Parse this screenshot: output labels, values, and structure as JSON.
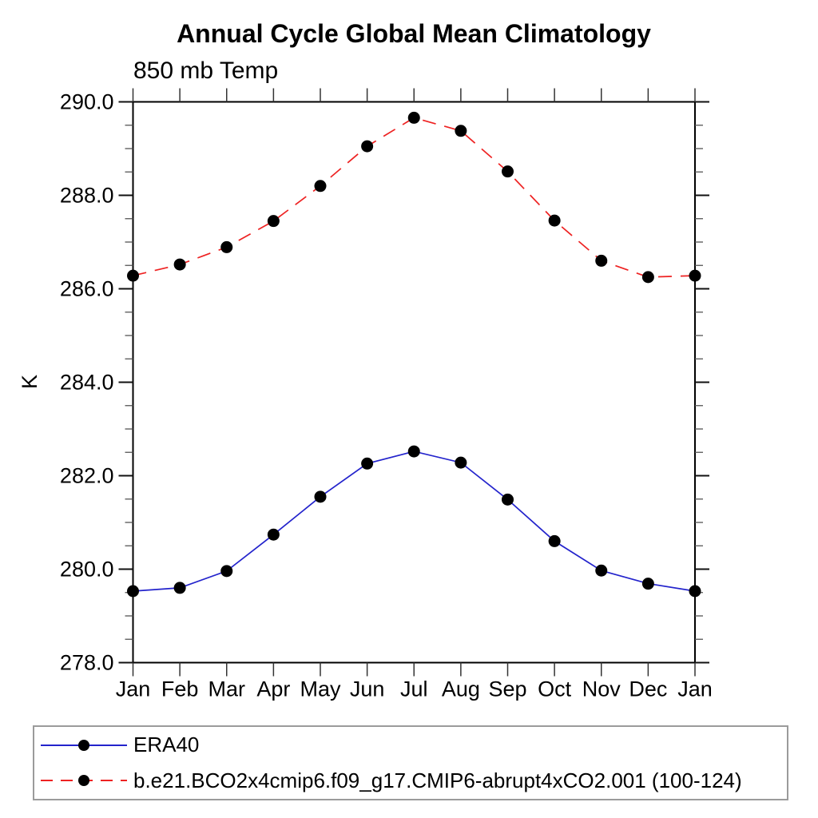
{
  "header": {
    "title": "Annual Cycle Global Mean Climatology",
    "subtitle": "850 mb Temp"
  },
  "chart_data": {
    "type": "line",
    "title": "Annual Cycle Global Mean Climatology",
    "subtitle": "850 mb Temp",
    "xlabel": "",
    "ylabel": "K",
    "ylim": [
      278.0,
      290.0
    ],
    "ytick_step": 2.0,
    "yminor_step": 0.5,
    "ytick_labels": [
      "278.0",
      "280.0",
      "282.0",
      "284.0",
      "286.0",
      "288.0",
      "290.0"
    ],
    "categories": [
      "Jan",
      "Feb",
      "Mar",
      "Apr",
      "May",
      "Jun",
      "Jul",
      "Aug",
      "Sep",
      "Oct",
      "Nov",
      "Dec",
      "Jan"
    ],
    "grid": false,
    "legend_position": "bottom",
    "frame_color": "#000000",
    "series": [
      {
        "name": "ERA40",
        "color": "#2323cc",
        "style": "solid",
        "marker": "filled-circle",
        "marker_color": "#000000",
        "values": [
          279.53,
          279.6,
          279.96,
          280.74,
          281.55,
          282.26,
          282.52,
          282.28,
          281.49,
          280.6,
          279.97,
          279.69,
          279.53
        ]
      },
      {
        "name": "b.e21.BCO2x4cmip6.f09_g17.CMIP6-abrupt4xCO2.001 (100-124)",
        "color": "#ee2222",
        "style": "dashed",
        "marker": "filled-circle",
        "marker_color": "#000000",
        "values": [
          286.28,
          286.52,
          286.89,
          287.45,
          288.2,
          289.05,
          289.66,
          289.38,
          288.51,
          287.46,
          286.6,
          286.25,
          286.28
        ]
      }
    ]
  }
}
